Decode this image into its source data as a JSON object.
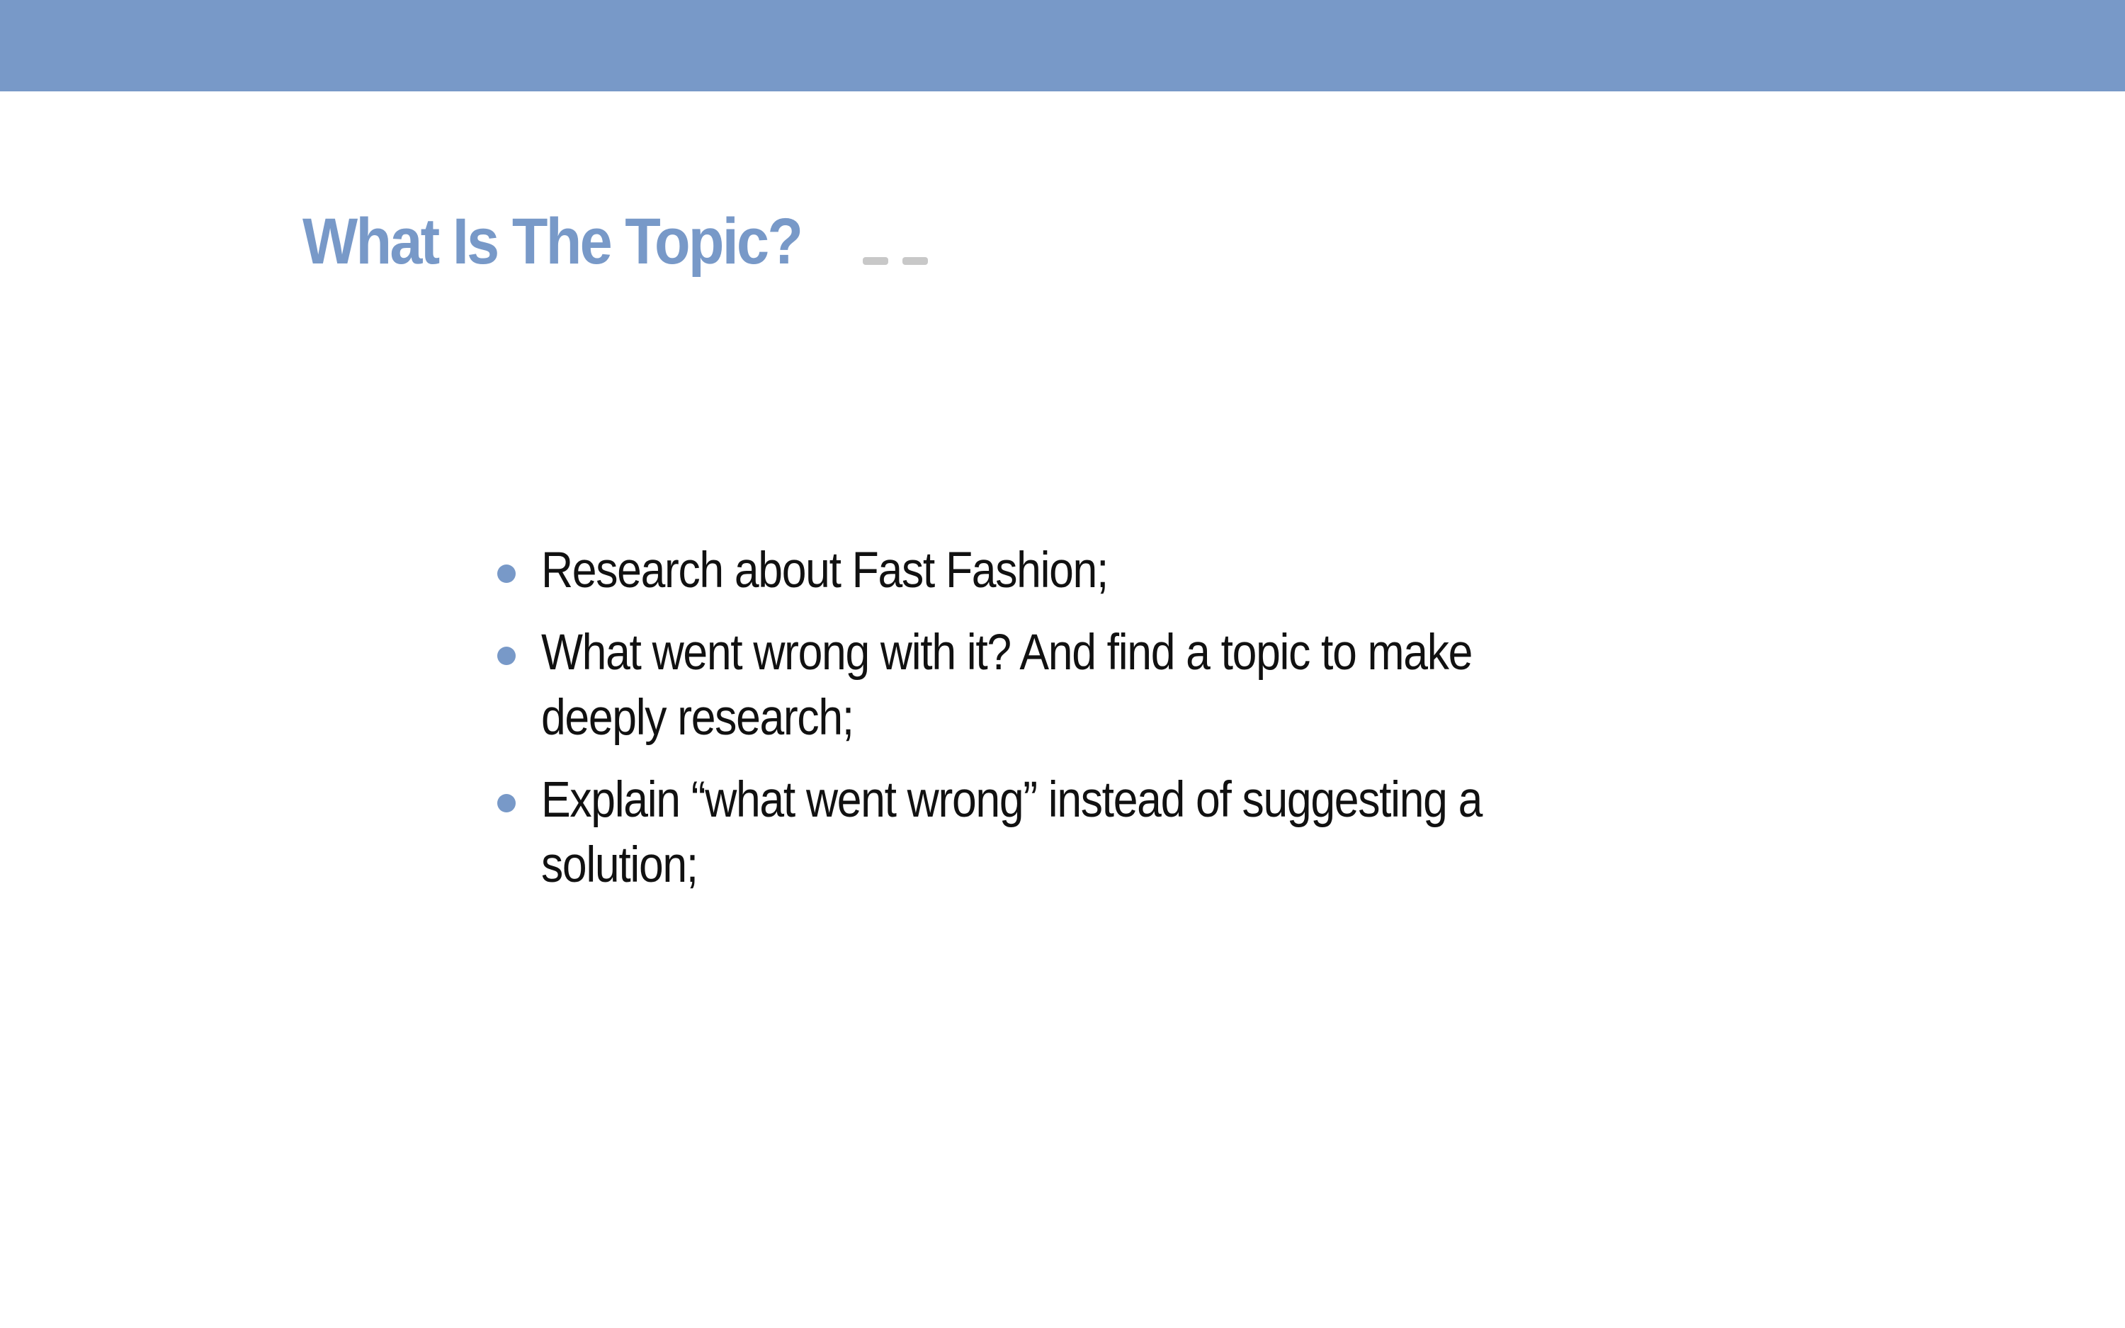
{
  "slide": {
    "title": "What Is The Topic?",
    "accent_color": "#7899c8",
    "bullets": [
      {
        "text": "Research about Fast Fashion;"
      },
      {
        "text": "What went wrong with it? And find a topic to make deeply research;"
      },
      {
        "text": "Explain “what went wrong” instead of suggesting a solution;"
      }
    ]
  }
}
